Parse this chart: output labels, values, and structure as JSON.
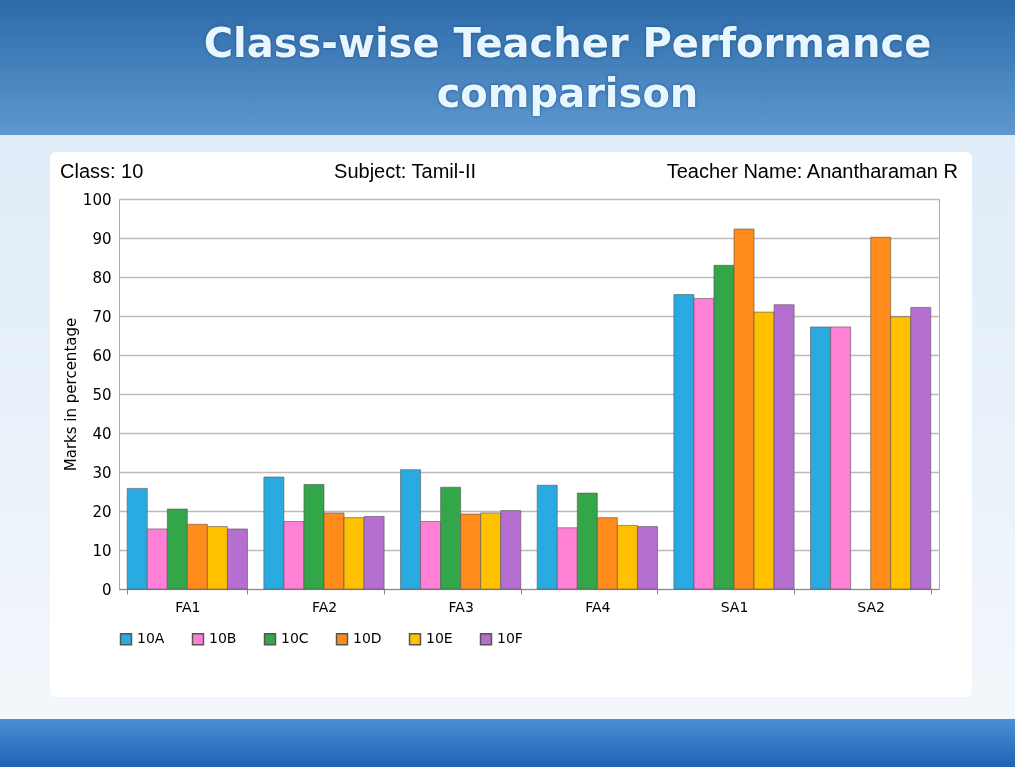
{
  "chart_data": {
    "type": "bar",
    "title": "Class-wise Teacher Performance comparison",
    "annotations": [
      "Class: 10",
      "Subject: Tamil-II",
      "Teacher Name: Anantharaman R"
    ],
    "ylabel": "Marks in percentage",
    "categories": [
      "FA1",
      "FA2",
      "FA3",
      "FA4",
      "SA1",
      "SA2"
    ],
    "series": [
      {
        "name": "10A",
        "color": "#29abe2",
        "values": [
          25.8,
          28.7,
          30.6,
          26.6,
          75.5,
          67.2
        ]
      },
      {
        "name": "10B",
        "color": "#ff80d5",
        "values": [
          15.4,
          17.3,
          17.3,
          15.7,
          74.5,
          67.2
        ]
      },
      {
        "name": "10C",
        "color": "#33a64a",
        "values": [
          20.5,
          26.8,
          26.1,
          24.6,
          83.0,
          null
        ]
      },
      {
        "name": "10D",
        "color": "#ff8c1a",
        "values": [
          16.6,
          19.5,
          19.2,
          18.3,
          92.3,
          90.2
        ]
      },
      {
        "name": "10E",
        "color": "#ffc000",
        "values": [
          16.0,
          18.3,
          19.5,
          16.3,
          71.0,
          69.8
        ]
      },
      {
        "name": "10F",
        "color": "#b56fd0",
        "values": [
          15.4,
          18.6,
          20.1,
          16.0,
          72.9,
          72.2
        ]
      }
    ],
    "ylim": [
      0,
      100
    ],
    "yticks": [
      0,
      10,
      20,
      30,
      40,
      50,
      60,
      70,
      80,
      90,
      100
    ],
    "grid": "y",
    "legend": "bottom"
  }
}
